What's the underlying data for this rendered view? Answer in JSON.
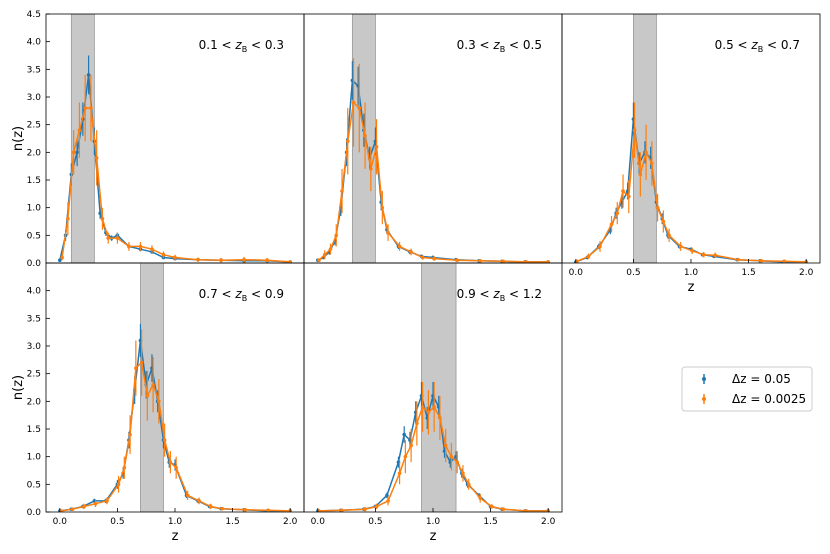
{
  "chart_data": [
    {
      "type": "line",
      "annotation": [
        "0.1 < ",
        "z",
        "B",
        " < 0.3"
      ],
      "shade": [
        0.1,
        0.3
      ],
      "ylabel": "n(z)",
      "xlim": [
        -0.12,
        2.12
      ],
      "ylim": [
        0,
        4.5
      ],
      "yticks": [
        {
          "value": 0,
          "label": "0.0"
        },
        0.5,
        {
          "value": 1,
          "label": "1.0"
        },
        1.5,
        {
          "value": 2,
          "label": "2.0"
        },
        2.5,
        {
          "value": 3,
          "label": "3.0"
        },
        3.5,
        {
          "value": 4,
          "label": "4.0"
        },
        4.5
      ],
      "series": [
        {
          "name": "Δz = 0.05",
          "color": "#1f77b4",
          "x": [
            0,
            0.05,
            0.1,
            0.15,
            0.2,
            0.25,
            0.3,
            0.35,
            0.4,
            0.45,
            0.5,
            0.6,
            0.7,
            0.8,
            0.9,
            1.0,
            1.2,
            1.4,
            1.6,
            1.8,
            2.0
          ],
          "values": [
            0.05,
            0.5,
            1.6,
            2.0,
            2.6,
            3.4,
            2.2,
            0.9,
            0.55,
            0.45,
            0.5,
            0.3,
            0.25,
            0.2,
            0.1,
            0.08,
            0.06,
            0.05,
            0.04,
            0.04,
            0.02
          ],
          "errors": [
            0.02,
            0.1,
            0.2,
            0.25,
            0.3,
            0.35,
            0.25,
            0.1,
            0.06,
            0.05,
            0.05,
            0.04,
            0.04,
            0.03,
            0.02,
            0.02,
            0.02,
            0.02,
            0.02,
            0.02,
            0.01
          ]
        },
        {
          "name": "Δz = 0.0025",
          "color": "#ff7f0e",
          "x": [
            0.02,
            0.07,
            0.12,
            0.17,
            0.22,
            0.27,
            0.32,
            0.37,
            0.42,
            0.5,
            0.6,
            0.7,
            0.8,
            0.9,
            1.0,
            1.2,
            1.4,
            1.6,
            1.8,
            2.0
          ],
          "values": [
            0.1,
            0.8,
            2.0,
            2.4,
            2.8,
            2.8,
            1.9,
            0.8,
            0.45,
            0.45,
            0.3,
            0.3,
            0.25,
            0.15,
            0.1,
            0.06,
            0.05,
            0.06,
            0.05,
            0.02
          ],
          "errors": [
            0.05,
            0.3,
            0.4,
            0.5,
            0.6,
            0.6,
            0.5,
            0.2,
            0.1,
            0.1,
            0.08,
            0.08,
            0.07,
            0.06,
            0.05,
            0.04,
            0.04,
            0.05,
            0.04,
            0.02
          ]
        }
      ]
    },
    {
      "type": "line",
      "annotation": [
        "0.3 < ",
        "z",
        "B",
        " < 0.5"
      ],
      "shade": [
        0.3,
        0.5
      ],
      "xlim": [
        -0.12,
        2.12
      ],
      "ylim": [
        0,
        4.5
      ],
      "series": [
        {
          "name": "Δz = 0.05",
          "color": "#1f77b4",
          "x": [
            0,
            0.05,
            0.1,
            0.15,
            0.2,
            0.25,
            0.3,
            0.35,
            0.4,
            0.45,
            0.5,
            0.55,
            0.6,
            0.7,
            0.8,
            0.9,
            1.0,
            1.2,
            1.4,
            1.6,
            1.8,
            2.0
          ],
          "values": [
            0.05,
            0.1,
            0.2,
            0.4,
            1.0,
            2.0,
            3.3,
            3.2,
            2.4,
            1.9,
            2.2,
            1.1,
            0.6,
            0.3,
            0.2,
            0.12,
            0.1,
            0.06,
            0.04,
            0.03,
            0.02,
            0.02
          ],
          "errors": [
            0.02,
            0.03,
            0.05,
            0.08,
            0.15,
            0.25,
            0.35,
            0.35,
            0.3,
            0.2,
            0.25,
            0.15,
            0.08,
            0.05,
            0.04,
            0.03,
            0.03,
            0.02,
            0.02,
            0.02,
            0.01,
            0.01
          ]
        },
        {
          "name": "Δz = 0.0025",
          "color": "#ff7f0e",
          "x": [
            0.01,
            0.06,
            0.11,
            0.16,
            0.21,
            0.26,
            0.31,
            0.36,
            0.41,
            0.46,
            0.51,
            0.56,
            0.61,
            0.71,
            0.81,
            0.91,
            1.01,
            1.21,
            1.41,
            1.61,
            1.81,
            2.0
          ],
          "values": [
            0.05,
            0.15,
            0.25,
            0.5,
            1.3,
            2.2,
            2.9,
            2.8,
            2.3,
            1.7,
            2.1,
            1.0,
            0.55,
            0.3,
            0.2,
            0.1,
            0.08,
            0.05,
            0.04,
            0.03,
            0.02,
            0.02
          ],
          "errors": [
            0.03,
            0.08,
            0.1,
            0.2,
            0.4,
            0.6,
            0.8,
            0.8,
            0.6,
            0.4,
            0.5,
            0.3,
            0.15,
            0.08,
            0.06,
            0.04,
            0.04,
            0.03,
            0.03,
            0.02,
            0.02,
            0.01
          ]
        }
      ]
    },
    {
      "type": "line",
      "annotation": [
        "0.5 < ",
        "z",
        "B",
        " < 0.7"
      ],
      "shade": [
        0.5,
        0.7
      ],
      "xlabel": "z",
      "xlim": [
        -0.12,
        2.12
      ],
      "ylim": [
        0,
        4.5
      ],
      "xticks": [
        {
          "value": 0,
          "label": "0.0"
        },
        0.5,
        {
          "value": 1,
          "label": "1.0"
        },
        1.5,
        {
          "value": 2,
          "label": "2.0"
        }
      ],
      "series": [
        {
          "name": "Δz = 0.05",
          "color": "#1f77b4",
          "x": [
            0,
            0.1,
            0.2,
            0.3,
            0.35,
            0.4,
            0.45,
            0.5,
            0.55,
            0.6,
            0.65,
            0.7,
            0.75,
            0.8,
            0.9,
            1.0,
            1.1,
            1.2,
            1.4,
            1.6,
            1.8,
            2.0
          ],
          "values": [
            0.02,
            0.1,
            0.3,
            0.6,
            0.9,
            1.1,
            1.3,
            2.6,
            1.8,
            2.0,
            1.9,
            1.1,
            0.8,
            0.5,
            0.3,
            0.25,
            0.15,
            0.12,
            0.06,
            0.04,
            0.02,
            0.02
          ],
          "errors": [
            0.01,
            0.03,
            0.05,
            0.08,
            0.1,
            0.12,
            0.15,
            0.3,
            0.2,
            0.2,
            0.2,
            0.12,
            0.1,
            0.06,
            0.04,
            0.03,
            0.03,
            0.02,
            0.02,
            0.01,
            0.01,
            0.01
          ]
        },
        {
          "name": "Δz = 0.0025",
          "color": "#ff7f0e",
          "x": [
            0.01,
            0.11,
            0.21,
            0.31,
            0.36,
            0.41,
            0.46,
            0.51,
            0.56,
            0.61,
            0.66,
            0.71,
            0.76,
            0.81,
            0.91,
            1.01,
            1.11,
            1.21,
            1.41,
            1.61,
            1.81,
            2.0
          ],
          "values": [
            0.03,
            0.12,
            0.3,
            0.7,
            0.9,
            1.3,
            1.2,
            2.4,
            1.6,
            2.0,
            1.8,
            1.0,
            0.75,
            0.5,
            0.3,
            0.22,
            0.15,
            0.14,
            0.06,
            0.04,
            0.03,
            0.02
          ],
          "errors": [
            0.02,
            0.05,
            0.1,
            0.15,
            0.2,
            0.3,
            0.3,
            0.5,
            0.4,
            0.5,
            0.4,
            0.25,
            0.2,
            0.12,
            0.08,
            0.06,
            0.05,
            0.05,
            0.03,
            0.02,
            0.02,
            0.01
          ]
        }
      ]
    },
    {
      "type": "line",
      "annotation": [
        "0.7 < ",
        "z",
        "B",
        " < 0.9"
      ],
      "shade": [
        0.7,
        0.9
      ],
      "xlabel": "z",
      "ylabel": "n(z)",
      "xlim": [
        -0.12,
        2.12
      ],
      "ylim": [
        0,
        4.5
      ],
      "xticks": [
        {
          "value": 0,
          "label": "0.0"
        },
        0.5,
        {
          "value": 1,
          "label": "1.0"
        },
        1.5,
        {
          "value": 2,
          "label": "2.0"
        }
      ],
      "yticks": [
        {
          "value": 0,
          "label": "0.0"
        },
        0.5,
        {
          "value": 1,
          "label": "1.0"
        },
        1.5,
        {
          "value": 2,
          "label": "2.0"
        },
        2.5,
        {
          "value": 3,
          "label": "3.0"
        },
        3.5,
        {
          "value": 4,
          "label": "4.0"
        }
      ],
      "series": [
        {
          "name": "Δz = 0.05",
          "color": "#1f77b4",
          "x": [
            0,
            0.1,
            0.2,
            0.3,
            0.4,
            0.5,
            0.55,
            0.6,
            0.65,
            0.7,
            0.75,
            0.8,
            0.85,
            0.9,
            0.95,
            1.0,
            1.1,
            1.2,
            1.3,
            1.4,
            1.6,
            1.8,
            2.0
          ],
          "values": [
            0.02,
            0.05,
            0.1,
            0.2,
            0.2,
            0.5,
            0.7,
            1.3,
            2.2,
            3.1,
            2.3,
            2.6,
            2.0,
            1.3,
            0.9,
            0.85,
            0.3,
            0.2,
            0.1,
            0.06,
            0.04,
            0.02,
            0.02
          ],
          "errors": [
            0.01,
            0.02,
            0.03,
            0.04,
            0.04,
            0.08,
            0.1,
            0.15,
            0.25,
            0.3,
            0.25,
            0.25,
            0.2,
            0.15,
            0.1,
            0.1,
            0.05,
            0.04,
            0.03,
            0.02,
            0.02,
            0.01,
            0.01
          ]
        },
        {
          "name": "Δz = 0.0025",
          "color": "#ff7f0e",
          "x": [
            0.01,
            0.11,
            0.21,
            0.31,
            0.41,
            0.51,
            0.56,
            0.61,
            0.66,
            0.71,
            0.76,
            0.81,
            0.86,
            0.91,
            0.96,
            1.01,
            1.11,
            1.21,
            1.31,
            1.41,
            1.61,
            1.81,
            2.0
          ],
          "values": [
            0.02,
            0.05,
            0.1,
            0.15,
            0.2,
            0.5,
            0.8,
            1.4,
            2.6,
            2.7,
            2.1,
            2.3,
            2.0,
            1.3,
            0.9,
            0.8,
            0.3,
            0.2,
            0.1,
            0.06,
            0.04,
            0.03,
            0.02
          ],
          "errors": [
            0.02,
            0.03,
            0.05,
            0.06,
            0.06,
            0.15,
            0.2,
            0.35,
            0.5,
            0.6,
            0.45,
            0.5,
            0.4,
            0.3,
            0.2,
            0.2,
            0.08,
            0.06,
            0.05,
            0.03,
            0.03,
            0.02,
            0.01
          ]
        }
      ]
    },
    {
      "type": "line",
      "annotation": [
        "0.9 < ",
        "z",
        "B",
        " < 1.2"
      ],
      "shade": [
        0.9,
        1.2
      ],
      "xlabel": "z",
      "legend": "lower right",
      "xlim": [
        -0.12,
        2.12
      ],
      "ylim": [
        0,
        4.5
      ],
      "xticks": [
        {
          "value": 0,
          "label": "0.0"
        },
        0.5,
        {
          "value": 1,
          "label": "1.0"
        },
        1.5,
        {
          "value": 2,
          "label": "2.0"
        }
      ],
      "series": [
        {
          "name": "Δz = 0.05",
          "color": "#1f77b4",
          "x": [
            0,
            0.2,
            0.4,
            0.5,
            0.6,
            0.7,
            0.75,
            0.8,
            0.85,
            0.9,
            0.95,
            1.0,
            1.05,
            1.1,
            1.15,
            1.2,
            1.25,
            1.3,
            1.4,
            1.5,
            1.6,
            1.8,
            2.0
          ],
          "values": [
            0.02,
            0.03,
            0.05,
            0.1,
            0.3,
            0.9,
            1.4,
            1.3,
            1.8,
            2.1,
            1.7,
            2.1,
            1.9,
            1.1,
            0.9,
            1.0,
            0.7,
            0.5,
            0.3,
            0.1,
            0.05,
            0.02,
            0.02
          ],
          "errors": [
            0.01,
            0.02,
            0.02,
            0.03,
            0.05,
            0.1,
            0.15,
            0.15,
            0.2,
            0.25,
            0.2,
            0.25,
            0.2,
            0.12,
            0.1,
            0.1,
            0.08,
            0.06,
            0.04,
            0.03,
            0.02,
            0.01,
            0.01
          ]
        },
        {
          "name": "Δz = 0.0025",
          "color": "#ff7f0e",
          "x": [
            0.01,
            0.21,
            0.41,
            0.51,
            0.61,
            0.71,
            0.76,
            0.81,
            0.86,
            0.91,
            0.96,
            1.01,
            1.06,
            1.11,
            1.16,
            1.21,
            1.26,
            1.31,
            1.41,
            1.51,
            1.61,
            1.81,
            2.0
          ],
          "values": [
            0.02,
            0.03,
            0.05,
            0.1,
            0.2,
            0.7,
            1.0,
            1.2,
            1.6,
            1.9,
            1.8,
            1.9,
            1.7,
            1.2,
            1.0,
            0.9,
            0.7,
            0.5,
            0.25,
            0.1,
            0.05,
            0.02,
            0.02
          ],
          "errors": [
            0.02,
            0.03,
            0.04,
            0.05,
            0.08,
            0.2,
            0.3,
            0.3,
            0.4,
            0.45,
            0.4,
            0.45,
            0.4,
            0.3,
            0.25,
            0.2,
            0.15,
            0.1,
            0.08,
            0.04,
            0.03,
            0.02,
            0.01
          ]
        }
      ]
    }
  ]
}
